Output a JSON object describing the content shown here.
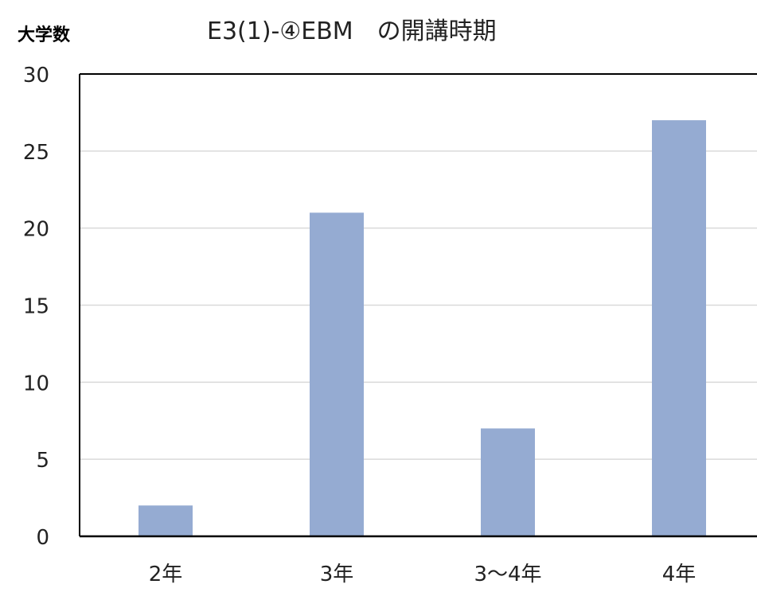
{
  "chart_data": {
    "type": "bar",
    "title": "E3(1)-④EBM　の開講時期",
    "ylabel": "大学数",
    "xlabel": "",
    "categories": [
      "2年",
      "3年",
      "3〜4年",
      "4年"
    ],
    "values": [
      2,
      21,
      7,
      27
    ],
    "ylim": [
      0,
      30
    ],
    "yticks": [
      0,
      5,
      10,
      15,
      20,
      25,
      30
    ],
    "grid": true,
    "legend": "none",
    "bar_color": "#95abd2"
  }
}
